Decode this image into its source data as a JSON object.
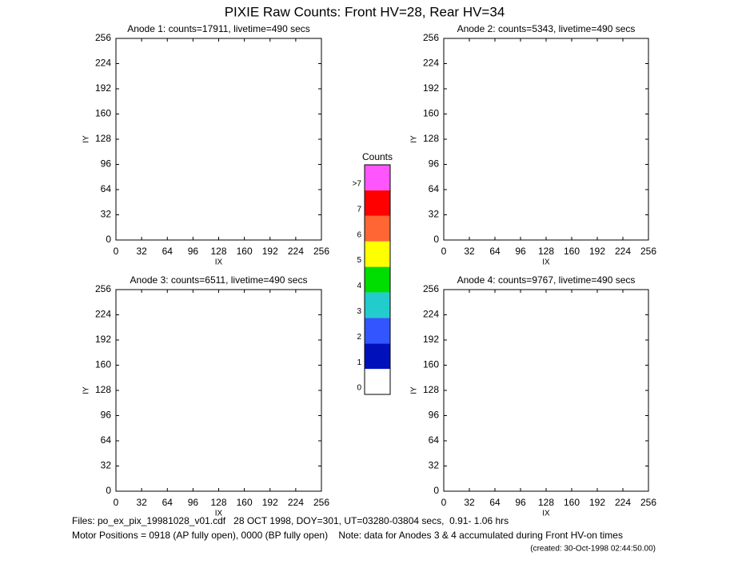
{
  "chart_data": [
    {
      "type": "heatmap",
      "title": "Anode 1: counts=17911, livetime=490 secs",
      "xlabel": "IX",
      "ylabel": "IY",
      "xlim": [
        0,
        256
      ],
      "xticks": [
        0,
        32,
        64,
        96,
        128,
        160,
        192,
        224,
        256
      ],
      "ylim": [
        0,
        256
      ],
      "yticks": [
        0,
        32,
        64,
        96,
        128,
        160,
        192,
        224,
        256
      ]
    },
    {
      "type": "heatmap",
      "title": "Anode 2: counts=5343, livetime=490 secs",
      "xlabel": "IX",
      "ylabel": "IY",
      "xlim": [
        0,
        256
      ],
      "xticks": [
        0,
        32,
        64,
        96,
        128,
        160,
        192,
        224,
        256
      ],
      "ylim": [
        0,
        256
      ],
      "yticks": [
        0,
        32,
        64,
        96,
        128,
        160,
        192,
        224,
        256
      ]
    },
    {
      "type": "heatmap",
      "title": "Anode 3: counts=6511, livetime=490 secs",
      "xlabel": "IX",
      "ylabel": "IY",
      "xlim": [
        0,
        256
      ],
      "xticks": [
        0,
        32,
        64,
        96,
        128,
        160,
        192,
        224,
        256
      ],
      "ylim": [
        0,
        256
      ],
      "yticks": [
        0,
        32,
        64,
        96,
        128,
        160,
        192,
        224,
        256
      ]
    },
    {
      "type": "heatmap",
      "title": "Anode 4: counts=9767, livetime=490 secs",
      "xlabel": "IX",
      "ylabel": "IY",
      "xlim": [
        0,
        256
      ],
      "xticks": [
        0,
        32,
        64,
        96,
        128,
        160,
        192,
        224,
        256
      ],
      "ylim": [
        0,
        256
      ],
      "yticks": [
        0,
        32,
        64,
        96,
        128,
        160,
        192,
        224,
        256
      ]
    },
    {
      "type": "colorbar",
      "title": "Counts",
      "categories": [
        "0",
        "1",
        "2",
        "3",
        "4",
        "5",
        "6",
        "7",
        ">7"
      ],
      "colors": [
        "#ffffff",
        "#0011bb",
        "#3355ff",
        "#22cccc",
        "#00dd00",
        "#ffff00",
        "#ff6633",
        "#ff0000",
        "#ff55ff"
      ]
    }
  ],
  "title": "PIXIE Raw Counts:  Front HV=28, Rear HV=34",
  "footer": {
    "files": "Files: po_ex_pix_19981028_v01.cdf   28 OCT 1998, DOY=301, UT=03280-03804 secs,  0.91- 1.06 hrs",
    "motor": "Motor Positions = 0918 (AP fully open), 0000 (BP fully open)    Note: data for Anodes 3 & 4 accumulated during Front HV-on times",
    "created": "(created: 30-Oct-1998 02:44:50.00)"
  }
}
